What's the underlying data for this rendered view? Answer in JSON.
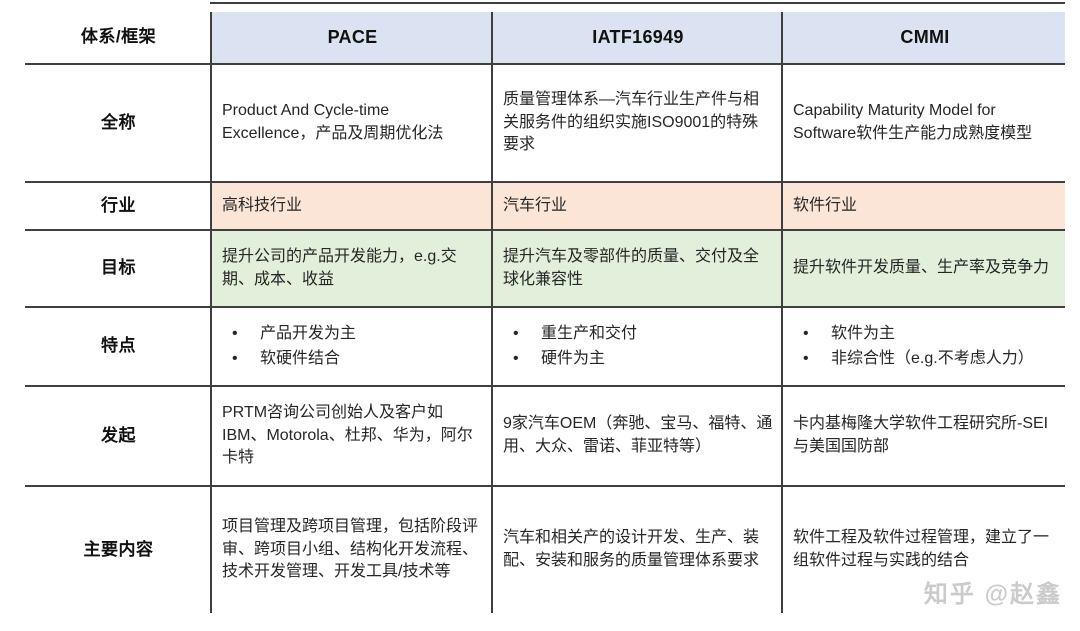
{
  "table": {
    "corner_label": "体系/框架",
    "columns": [
      "PACE",
      "IATF16949",
      "CMMI"
    ],
    "rows": [
      {
        "label": "全称",
        "cells": [
          "Product And Cycle-time Excellence，产品及周期优化法",
          "质量管理体系—汽车行业生产件与相关服务件的组织实施ISO9001的特殊要求",
          "Capability Maturity Model for Software软件生产能力成熟度模型"
        ]
      },
      {
        "label": "行业",
        "cells": [
          "高科技行业",
          "汽车行业",
          "软件行业"
        ]
      },
      {
        "label": "目标",
        "cells": [
          "提升公司的产品开发能力，e.g.交期、成本、收益",
          "提升汽车及零部件的质量、交付及全球化兼容性",
          "提升软件开发质量、生产率及竞争力"
        ]
      },
      {
        "label": "特点",
        "cells": [
          {
            "items": [
              "产品开发为主",
              "软硬件结合"
            ]
          },
          {
            "items": [
              "重生产和交付",
              "硬件为主"
            ]
          },
          {
            "items": [
              "软件为主",
              "非综合性（e.g.不考虑人力）"
            ]
          }
        ]
      },
      {
        "label": "发起",
        "cells": [
          "PRTM咨询公司创始人及客户如IBM、Motorola、杜邦、华为，阿尔卡特",
          "9家汽车OEM（奔驰、宝马、福特、通用、大众、雷诺、菲亚特等）",
          "卡内基梅隆大学软件工程研究所-SEI与美国国防部"
        ]
      },
      {
        "label": "主要内容",
        "cells": [
          "项目管理及跨项目管理，包括阶段评审、跨项目小组、结构化开发流程、技术开发管理、开发工具/技术等",
          "汽车和相关产的设计开发、生产、装配、安装和服务的质量管理体系要求",
          "软件工程及软件过程管理，建立了一组软件过程与实践的结合"
        ]
      }
    ]
  },
  "bullet": "•",
  "watermark": "知乎 @赵鑫",
  "colors": {
    "header_bg": "#dbe3f2",
    "industry_row_bg": "#fbe5d6",
    "goal_row_bg": "#e2efda",
    "border": "#3f3f3f",
    "watermark_text": "#cbcbcb"
  }
}
